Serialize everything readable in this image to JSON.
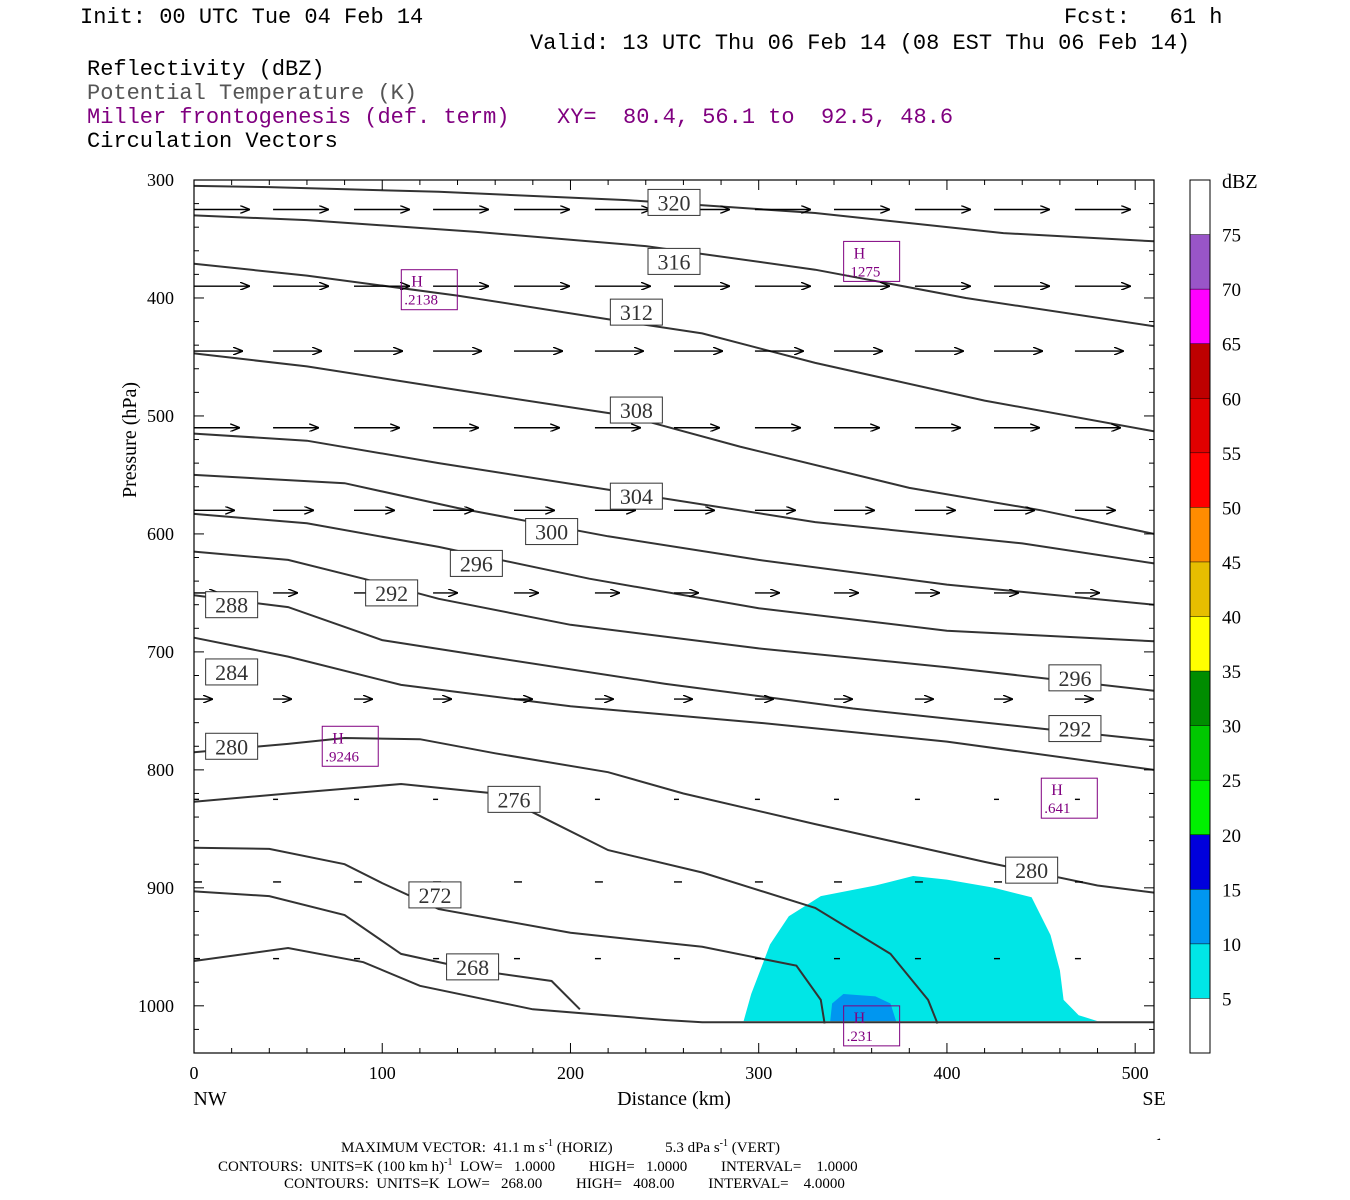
{
  "header": {
    "init": "Init: 00 UTC Tue 04 Feb 14",
    "fcst": "Fcst:   61 h",
    "valid": "Valid: 13 UTC Thu 06 Feb 14 (08 EST Thu 06 Feb 14)",
    "fields": [
      "Reflectivity (dBZ)",
      "Potential Temperature (K)",
      "Miller frontogenesis (def. term)",
      "Circulation Vectors"
    ],
    "xy": "XY=  80.4, 56.1 to  92.5, 48.6"
  },
  "footer": {
    "max_vector_label": "MAXIMUM VECTOR:",
    "max_vector_horiz": "41.1 m s",
    "horiz_unit": "(HORIZ)",
    "max_vector_vert": "5.3 dPa s",
    "vert_unit": "(VERT)",
    "exponent": "-1",
    "contours_frontogenesis": "CONTOURS:  UNITS=K (100 km h)",
    "contours_frontogenesis_rest": "  LOW=   1.0000         HIGH=   1.0000         INTERVAL=    1.0000",
    "contours_theta": "CONTOURS:  UNITS=K  LOW=   268.00         HIGH=   408.00         INTERVAL=    4.0000"
  },
  "colorbar": {
    "title": "dBZ",
    "labels": [
      "5",
      "10",
      "15",
      "20",
      "25",
      "30",
      "35",
      "40",
      "45",
      "50",
      "55",
      "60",
      "65",
      "70",
      "75"
    ],
    "colors": [
      "#ffffff",
      "#00e6e6",
      "#0096f0",
      "#0000dc",
      "#00f000",
      "#00c800",
      "#008c00",
      "#ffff00",
      "#e6be00",
      "#ff8c00",
      "#ff0000",
      "#e10000",
      "#be0000",
      "#ff00ff",
      "#9955c8",
      "#ffffff"
    ]
  },
  "chart_data": {
    "type": "cross-section",
    "xlabel": "Distance (km)",
    "ylabel": "Pressure (hPa)",
    "xlim": [
      0,
      510
    ],
    "ylim": [
      1040,
      300
    ],
    "x_ticks": [
      0,
      100,
      200,
      300,
      400,
      500
    ],
    "y_ticks": [
      300,
      400,
      500,
      600,
      700,
      800,
      900,
      1000
    ],
    "x_end_labels": [
      "NW",
      "SE"
    ],
    "theta_contours": [
      {
        "value": "320",
        "points": [
          [
            0,
            305
          ],
          [
            40,
            306
          ],
          [
            130,
            310
          ],
          [
            230,
            317
          ],
          [
            330,
            328
          ],
          [
            430,
            345
          ],
          [
            510,
            352
          ]
        ]
      },
      {
        "value": "316",
        "points": [
          [
            0,
            330
          ],
          [
            60,
            334
          ],
          [
            150,
            344
          ],
          [
            240,
            356
          ],
          [
            330,
            376
          ],
          [
            410,
            400
          ],
          [
            510,
            424
          ]
        ]
      },
      {
        "value": "312",
        "points": [
          [
            0,
            371
          ],
          [
            60,
            381
          ],
          [
            140,
            398
          ],
          [
            220,
            418
          ],
          [
            270,
            430
          ],
          [
            330,
            455
          ],
          [
            420,
            487
          ],
          [
            510,
            513
          ]
        ]
      },
      {
        "value": "308",
        "points": [
          [
            0,
            447
          ],
          [
            60,
            458
          ],
          [
            140,
            478
          ],
          [
            230,
            500
          ],
          [
            290,
            526
          ],
          [
            380,
            561
          ],
          [
            450,
            580
          ],
          [
            510,
            600
          ]
        ]
      },
      {
        "value": "304",
        "points": [
          [
            0,
            515
          ],
          [
            60,
            521
          ],
          [
            130,
            540
          ],
          [
            230,
            565
          ],
          [
            330,
            590
          ],
          [
            440,
            608
          ],
          [
            510,
            625
          ]
        ]
      },
      {
        "value": "300",
        "points": [
          [
            0,
            550
          ],
          [
            80,
            557
          ],
          [
            140,
            578
          ],
          [
            220,
            602
          ],
          [
            300,
            622
          ],
          [
            400,
            643
          ],
          [
            510,
            660
          ]
        ]
      },
      {
        "value": "296",
        "points": [
          [
            0,
            583
          ],
          [
            60,
            591
          ],
          [
            130,
            611
          ],
          [
            210,
            638
          ],
          [
            300,
            663
          ],
          [
            400,
            682
          ],
          [
            510,
            691
          ]
        ]
      },
      {
        "value": "292",
        "points": [
          [
            0,
            615
          ],
          [
            50,
            622
          ],
          [
            90,
            638
          ],
          [
            130,
            655
          ],
          [
            200,
            677
          ],
          [
            300,
            697
          ],
          [
            400,
            713
          ],
          [
            510,
            733
          ]
        ]
      },
      {
        "value": "288",
        "points": [
          [
            0,
            652
          ],
          [
            50,
            662
          ],
          [
            100,
            690
          ],
          [
            160,
            705
          ],
          [
            250,
            727
          ],
          [
            350,
            748
          ],
          [
            450,
            765
          ],
          [
            510,
            775
          ]
        ]
      },
      {
        "value": "284",
        "points": [
          [
            0,
            688
          ],
          [
            50,
            704
          ],
          [
            110,
            728
          ],
          [
            200,
            746
          ],
          [
            300,
            760
          ],
          [
            400,
            776
          ],
          [
            510,
            800
          ]
        ]
      },
      {
        "value": "280",
        "points": [
          [
            0,
            785
          ],
          [
            50,
            778
          ],
          [
            80,
            773
          ],
          [
            120,
            774
          ],
          [
            160,
            786
          ],
          [
            220,
            802
          ],
          [
            260,
            820
          ],
          [
            330,
            846
          ],
          [
            420,
            878
          ],
          [
            480,
            898
          ],
          [
            510,
            904
          ]
        ]
      },
      {
        "value": "276",
        "points": [
          [
            0,
            827
          ],
          [
            50,
            820
          ],
          [
            110,
            812
          ],
          [
            160,
            820
          ],
          [
            190,
            844
          ],
          [
            220,
            868
          ],
          [
            270,
            887
          ],
          [
            330,
            917
          ],
          [
            370,
            956
          ],
          [
            390,
            995
          ],
          [
            395,
            1015
          ]
        ]
      },
      {
        "value": "272",
        "points": [
          [
            0,
            866
          ],
          [
            40,
            867
          ],
          [
            80,
            880
          ],
          [
            100,
            896
          ],
          [
            130,
            918
          ],
          [
            200,
            938
          ],
          [
            270,
            950
          ],
          [
            320,
            966
          ],
          [
            333,
            995
          ],
          [
            335,
            1015
          ]
        ]
      },
      {
        "value": "268",
        "points": [
          [
            0,
            903
          ],
          [
            40,
            907
          ],
          [
            80,
            923
          ],
          [
            110,
            956
          ],
          [
            150,
            970
          ],
          [
            190,
            979
          ],
          [
            205,
            1003
          ]
        ]
      },
      {
        "value": "264",
        "points": [
          [
            0,
            962
          ],
          [
            50,
            951
          ],
          [
            90,
            963
          ],
          [
            120,
            983
          ],
          [
            180,
            1003
          ],
          [
            250,
            1012
          ],
          [
            270,
            1014
          ],
          [
            510,
            1014
          ]
        ]
      }
    ],
    "theta_labels": [
      {
        "text": "320",
        "x": 255,
        "p": 319
      },
      {
        "text": "316",
        "x": 255,
        "p": 369
      },
      {
        "text": "312",
        "x": 235,
        "p": 412
      },
      {
        "text": "308",
        "x": 235,
        "p": 495
      },
      {
        "text": "304",
        "x": 235,
        "p": 568
      },
      {
        "text": "300",
        "x": 190,
        "p": 598
      },
      {
        "text": "296",
        "x": 150,
        "p": 625
      },
      {
        "text": "292",
        "x": 105,
        "p": 650
      },
      {
        "text": "288",
        "x": 20,
        "p": 660
      },
      {
        "text": "284",
        "x": 20,
        "p": 717
      },
      {
        "text": "280",
        "x": 20,
        "p": 780
      },
      {
        "text": "276",
        "x": 170,
        "p": 825
      },
      {
        "text": "272",
        "x": 128,
        "p": 906
      },
      {
        "text": "268",
        "x": 148,
        "p": 967
      },
      {
        "text": "296",
        "x": 468,
        "p": 722
      },
      {
        "text": "292",
        "x": 468,
        "p": 765
      },
      {
        "text": "280",
        "x": 445,
        "p": 885
      }
    ],
    "highs": [
      {
        "label": "H",
        "value": ".2138",
        "x": 125,
        "p": 393
      },
      {
        "label": "H",
        "value": ".1275",
        "x": 360,
        "p": 369
      },
      {
        "label": "H",
        "value": ".9246",
        "x": 83,
        "p": 780
      },
      {
        "label": "H",
        "value": ".641",
        "x": 465,
        "p": 824
      },
      {
        "label": "H",
        "value": ".231",
        "x": 360,
        "p": 1017
      }
    ],
    "reflectivity_5dBZ": [
      [
        292,
        1013
      ],
      [
        296,
        990
      ],
      [
        302,
        965
      ],
      [
        306,
        948
      ],
      [
        316,
        924
      ],
      [
        333,
        907
      ],
      [
        362,
        898
      ],
      [
        382,
        890
      ],
      [
        400,
        893
      ],
      [
        425,
        900
      ],
      [
        445,
        908
      ],
      [
        455,
        940
      ],
      [
        460,
        970
      ],
      [
        462,
        995
      ],
      [
        470,
        1008
      ],
      [
        480,
        1013
      ]
    ],
    "reflectivity_10dBZ": [
      [
        338,
        1013
      ],
      [
        339,
        998
      ],
      [
        345,
        990
      ],
      [
        362,
        992
      ],
      [
        370,
        998
      ],
      [
        373,
        1013
      ]
    ],
    "vector_rows": [
      {
        "p": 325,
        "dx": 55,
        "x": [
          0,
          42,
          85,
          127,
          170,
          213,
          255,
          298,
          340,
          383,
          425,
          468
        ]
      },
      {
        "p": 390,
        "dx": 55,
        "x": [
          0,
          42,
          85,
          127,
          170,
          213,
          255,
          298,
          340,
          383,
          425,
          468
        ]
      },
      {
        "p": 445,
        "dx": 48,
        "x": [
          0,
          42,
          85,
          127,
          170,
          213,
          255,
          298,
          340,
          383,
          425,
          468
        ]
      },
      {
        "p": 510,
        "dx": 45,
        "x": [
          0,
          42,
          85,
          127,
          170,
          213,
          255,
          298,
          340,
          383,
          425,
          468
        ]
      },
      {
        "p": 580,
        "dx": 40,
        "x": [
          0,
          42,
          85,
          127,
          170,
          213,
          255,
          298,
          340,
          383,
          425,
          468
        ]
      },
      {
        "p": 650,
        "dx": 24,
        "x": [
          0,
          42,
          85,
          127,
          170,
          213,
          255,
          298,
          340,
          383,
          425,
          468
        ]
      },
      {
        "p": 740,
        "dx": 18,
        "x": [
          0,
          42,
          85,
          127,
          170,
          213,
          255,
          298,
          340,
          383,
          425,
          468
        ]
      },
      {
        "p": 825,
        "dx": 5,
        "x": [
          0,
          42,
          85,
          127,
          170,
          213,
          255,
          298,
          340,
          383,
          425,
          468
        ]
      },
      {
        "p": 895,
        "dx": 8,
        "x": [
          0,
          42,
          85,
          127,
          170,
          213,
          255,
          298,
          340,
          383,
          425,
          468
        ]
      },
      {
        "p": 960,
        "dx": 6,
        "x": [
          0,
          42,
          85,
          127,
          170,
          213,
          255,
          298,
          340,
          383,
          425,
          468
        ]
      }
    ]
  }
}
